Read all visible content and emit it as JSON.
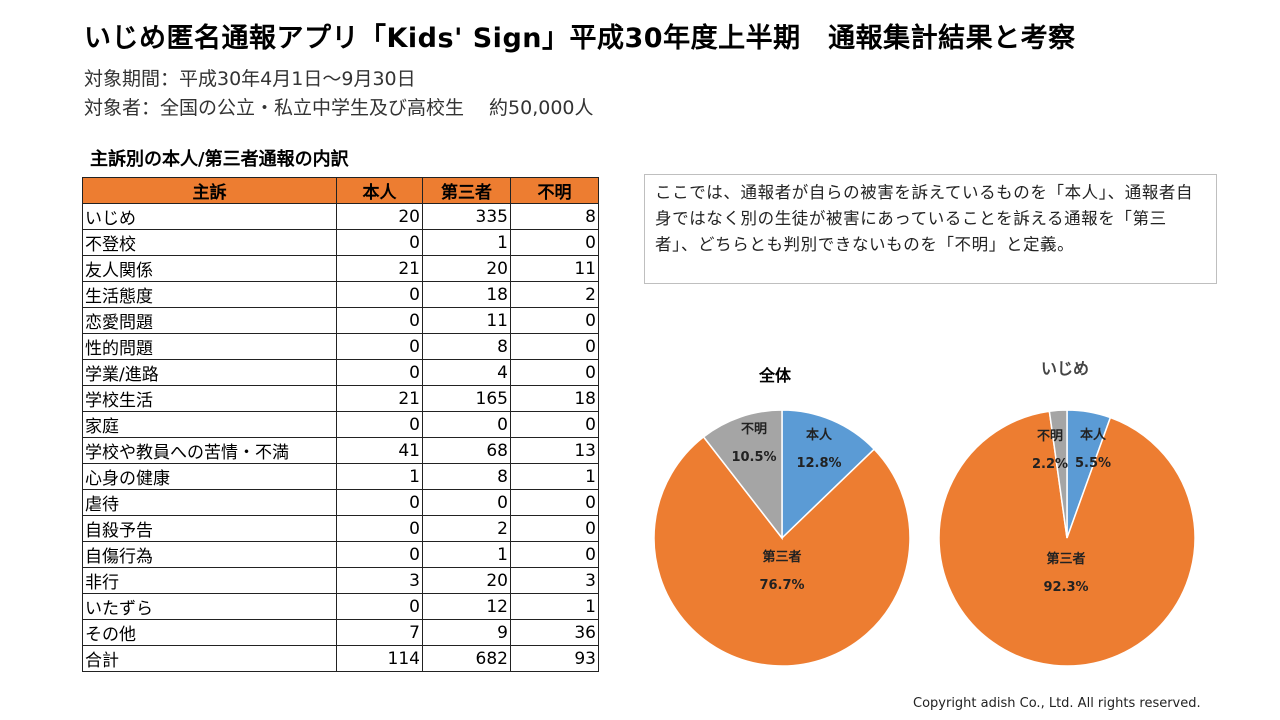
{
  "title": "いじめ匿名通報アプリ「Kids' Sign」平成30年度上半期　通報集計結果と考察",
  "subtitle1": "対象期間：平成30年4月1日～9月30日",
  "subtitle2": "対象者：全国の公立・私立中学生及び高校生　 約50,000人",
  "table_title": "主訴別の本人/第三者通報の内訳",
  "table": {
    "headers": [
      "主訴",
      "本人",
      "第三者",
      "不明"
    ],
    "rows": [
      [
        "いじめ",
        "20",
        "335",
        "8"
      ],
      [
        "不登校",
        "0",
        "1",
        "0"
      ],
      [
        "友人関係",
        "21",
        "20",
        "11"
      ],
      [
        "生活態度",
        "0",
        "18",
        "2"
      ],
      [
        "恋愛問題",
        "0",
        "11",
        "0"
      ],
      [
        "性的問題",
        "0",
        "8",
        "0"
      ],
      [
        "学業/進路",
        "0",
        "4",
        "0"
      ],
      [
        "学校生活",
        "21",
        "165",
        "18"
      ],
      [
        "家庭",
        "0",
        "0",
        "0"
      ],
      [
        "学校や教員への苦情・不満",
        "41",
        "68",
        "13"
      ],
      [
        "心身の健康",
        "1",
        "8",
        "1"
      ],
      [
        "虐待",
        "0",
        "0",
        "0"
      ],
      [
        "自殺予告",
        "0",
        "2",
        "0"
      ],
      [
        "自傷行為",
        "0",
        "1",
        "0"
      ],
      [
        "非行",
        "3",
        "20",
        "3"
      ],
      [
        "いたずら",
        "0",
        "12",
        "1"
      ],
      [
        "その他",
        "7",
        "9",
        "36"
      ],
      [
        "合計",
        "114",
        "682",
        "93"
      ]
    ]
  },
  "note": "ここでは、通報者が自らの被害を訴えているものを「本人」、通報者自身ではなく別の生徒が被害にあっていることを訴える通報を「第三者」、どちらとも判別できないものを「不明」と定義。",
  "copyright": "Copyright adish Co., Ltd. All rights reserved.",
  "colors": {
    "header": "#ed7d31",
    "honnin": "#5b9bd5",
    "daisansha": "#ed7d31",
    "fumei": "#a5a5a5"
  },
  "chart_data": [
    {
      "type": "pie",
      "title": "全体",
      "slices": [
        {
          "label": "本人",
          "value": 12.8,
          "pct_label": "12.8%",
          "color": "#5b9bd5"
        },
        {
          "label": "第三者",
          "value": 76.7,
          "pct_label": "76.7%",
          "color": "#ed7d31"
        },
        {
          "label": "不明",
          "value": 10.5,
          "pct_label": "10.5%",
          "color": "#a5a5a5"
        }
      ]
    },
    {
      "type": "pie",
      "title": "いじめ",
      "slices": [
        {
          "label": "本人",
          "value": 5.5,
          "pct_label": "5.5%",
          "color": "#5b9bd5"
        },
        {
          "label": "第三者",
          "value": 92.3,
          "pct_label": "92.3%",
          "color": "#ed7d31"
        },
        {
          "label": "不明",
          "value": 2.2,
          "pct_label": "2.2%",
          "color": "#a5a5a5"
        }
      ]
    }
  ]
}
